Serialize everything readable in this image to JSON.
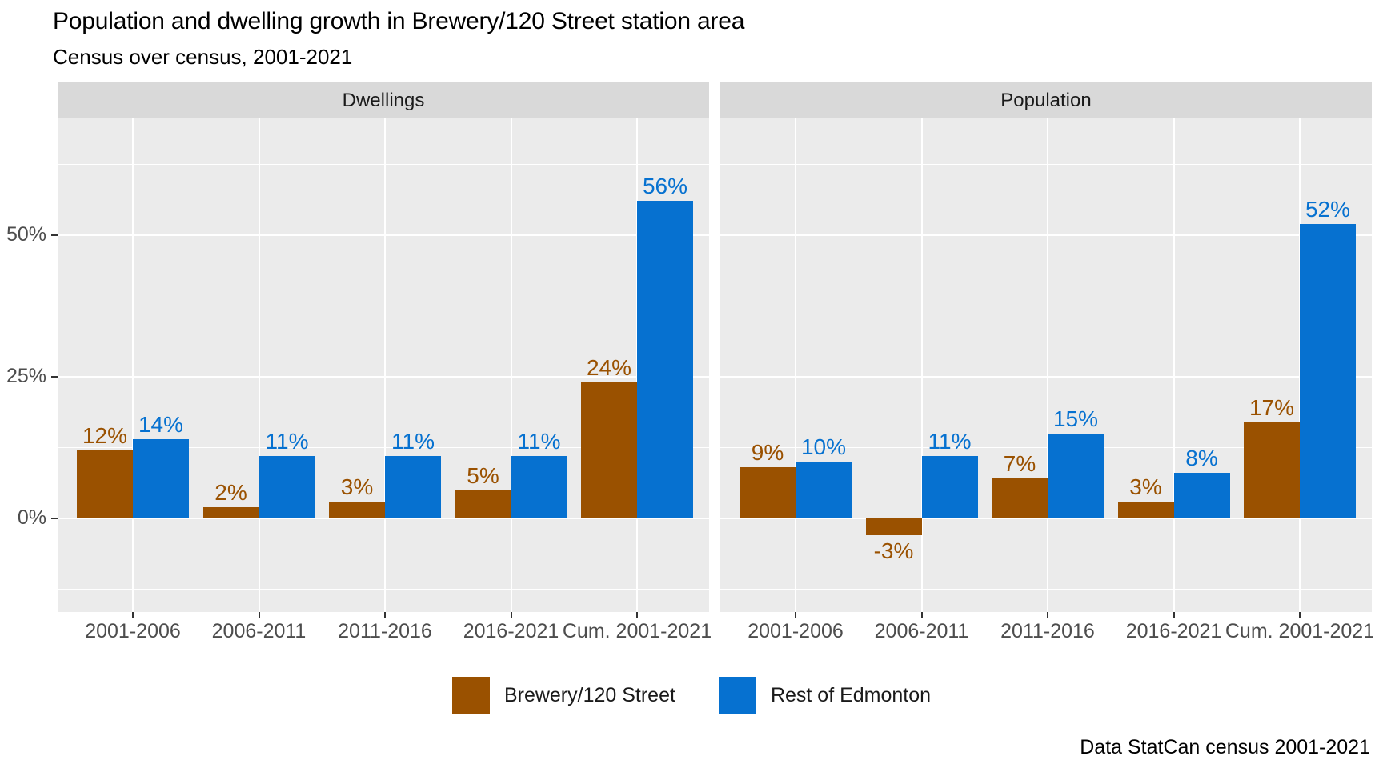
{
  "colors": {
    "brewery": "#9A5100",
    "edmonton": "#0671D0",
    "panel_bg": "#EBEBEB",
    "strip_bg": "#D9D9D9",
    "grid": "#FFFFFF",
    "axis_text": "#4D4D4D",
    "tick_mark": "#333333"
  },
  "chart_data": {
    "type": "bar",
    "title": "Population and dwelling growth in Brewery/120 Street station area",
    "subtitle": "Census over census, 2001-2021",
    "caption": "Data StatCan census 2001-2021",
    "categories": [
      "2001-2006",
      "2006-2011",
      "2011-2016",
      "2016-2021",
      "Cum. 2001-2021"
    ],
    "y_axis": {
      "ticks": [
        {
          "label": "0%",
          "value": 0
        },
        {
          "label": "25%",
          "value": 25
        },
        {
          "label": "50%",
          "value": 50
        }
      ],
      "range": [
        -16.5,
        70.5
      ],
      "grid": "white major + minor on gray panel"
    },
    "legend": {
      "position": "bottom",
      "entries": [
        {
          "label": "Brewery/120 Street",
          "color": "#9A5100"
        },
        {
          "label": "Rest of Edmonton",
          "color": "#0671D0"
        }
      ]
    },
    "facets": [
      {
        "label": "Dwellings",
        "series": [
          {
            "name": "Brewery/120 Street",
            "color": "#9A5100",
            "values": [
              12,
              2,
              3,
              5,
              24
            ],
            "value_labels": [
              "12%",
              "2%",
              "3%",
              "5%",
              "24%"
            ]
          },
          {
            "name": "Rest of Edmonton",
            "color": "#0671D0",
            "values": [
              14,
              11,
              11,
              11,
              56
            ],
            "value_labels": [
              "14%",
              "11%",
              "11%",
              "11%",
              "56%"
            ]
          }
        ]
      },
      {
        "label": "Population",
        "series": [
          {
            "name": "Brewery/120 Street",
            "color": "#9A5100",
            "values": [
              9,
              -3,
              7,
              3,
              17
            ],
            "value_labels": [
              "9%",
              "-3%",
              "7%",
              "3%",
              "17%"
            ]
          },
          {
            "name": "Rest of Edmonton",
            "color": "#0671D0",
            "values": [
              10,
              11,
              15,
              8,
              52
            ],
            "value_labels": [
              "10%",
              "11%",
              "15%",
              "8%",
              "52%"
            ]
          }
        ]
      }
    ]
  }
}
